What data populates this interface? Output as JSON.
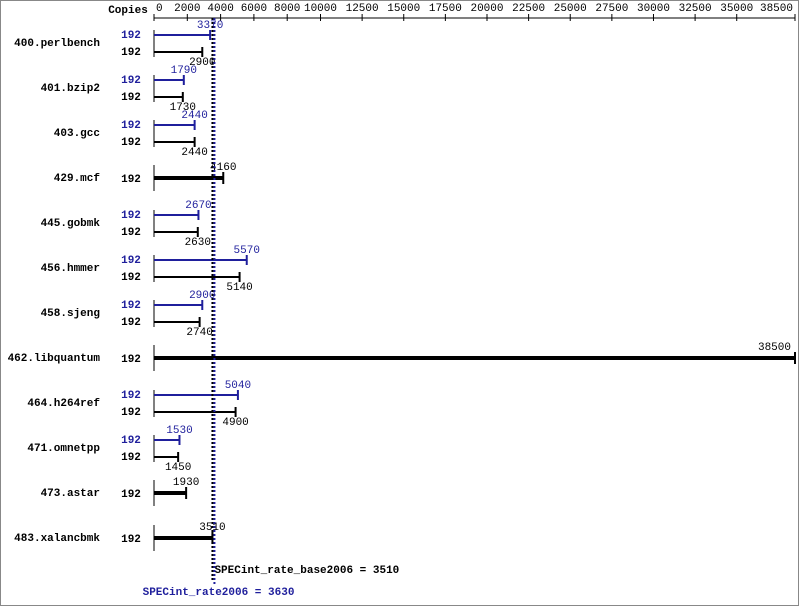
{
  "chart_data": {
    "type": "hbar",
    "copies_label": "Copies",
    "categories": [
      "400.perlbench",
      "401.bzip2",
      "403.gcc",
      "429.mcf",
      "445.gobmk",
      "456.hmmer",
      "458.sjeng",
      "462.libquantum",
      "464.h264ref",
      "471.omnetpp",
      "473.astar",
      "483.xalancbmk"
    ],
    "series": [
      {
        "color": "#1f1f9c",
        "copies": [
          192,
          192,
          192,
          null,
          192,
          192,
          192,
          null,
          192,
          192,
          null,
          null
        ],
        "values": [
          3370,
          1790,
          2440,
          null,
          2670,
          5570,
          2900,
          null,
          5040,
          1530,
          null,
          null
        ]
      },
      {
        "color": "#000000",
        "copies": [
          192,
          192,
          192,
          192,
          192,
          192,
          192,
          192,
          192,
          192,
          192,
          192
        ],
        "values": [
          2900,
          1730,
          2440,
          4160,
          2630,
          5140,
          2740,
          38500,
          4900,
          1450,
          1930,
          3510
        ]
      }
    ],
    "xlim": [
      0,
      38500
    ],
    "xticks": [
      0,
      2000,
      4000,
      6000,
      8000,
      10000,
      12500,
      15000,
      17500,
      20000,
      22500,
      25000,
      27500,
      30000,
      32500,
      35000,
      38500
    ],
    "metrics": [
      {
        "label": "SPECint_rate_base2006 = 3510",
        "value": 3510,
        "color": "#000000"
      },
      {
        "label": "SPECint_rate2006 = 3630",
        "value": 3630,
        "color": "#1f1f9c"
      }
    ]
  }
}
